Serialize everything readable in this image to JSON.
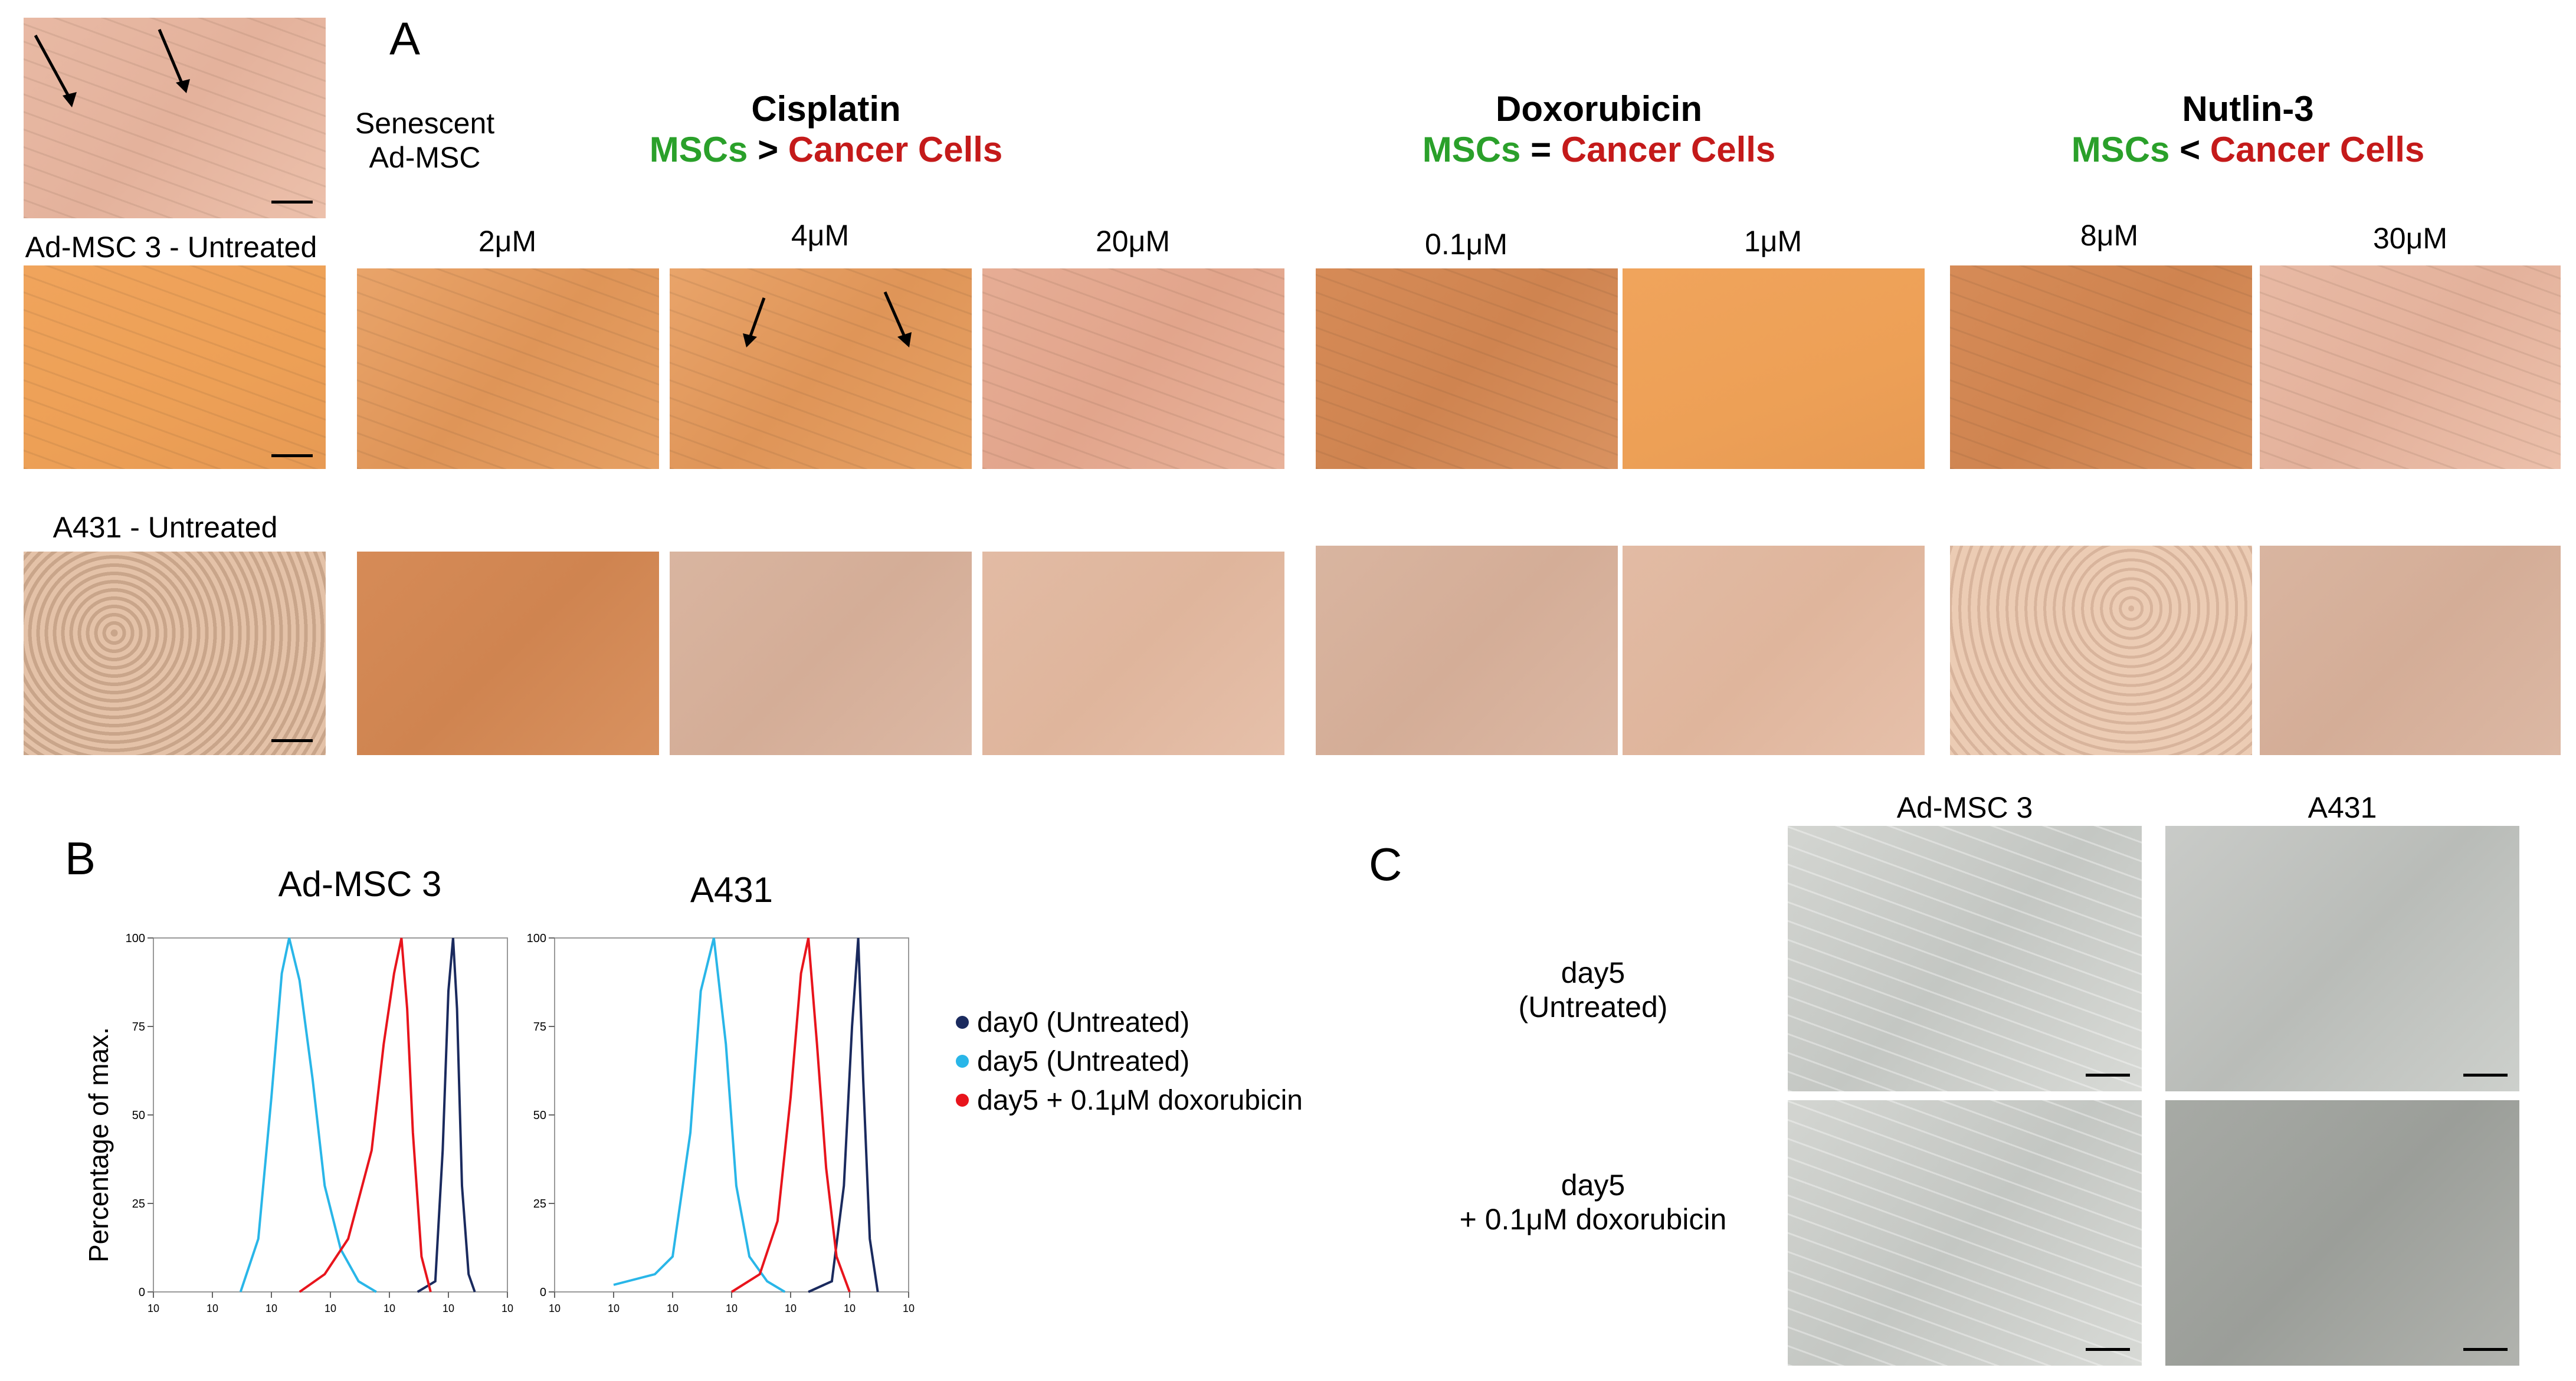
{
  "panel_a": {
    "letter": "A",
    "senescent_label_line1": "Senescent",
    "senescent_label_line2": "Ad-MSC",
    "row1_label": "Ad-MSC 3 - Untreated",
    "row2_label": "A431 - Untreated",
    "drugs": [
      {
        "name": "Cisplatin",
        "cmp_left": "MSCs",
        "cmp_op": ">",
        "cmp_right": "Cancer Cells",
        "doses": [
          "2μM",
          "4μM",
          "20μM"
        ]
      },
      {
        "name": "Doxorubicin",
        "cmp_left": "MSCs",
        "cmp_op": "=",
        "cmp_right": "Cancer Cells",
        "doses": [
          "0.1μM",
          "1μM"
        ]
      },
      {
        "name": "Nutlin-3",
        "cmp_left": "MSCs",
        "cmp_op": "<",
        "cmp_right": "Cancer Cells",
        "doses": [
          "8μM",
          "30μM"
        ]
      }
    ]
  },
  "panel_b": {
    "letter": "B",
    "ylabel": "Percentage of max.",
    "plots": [
      "Ad-MSC 3",
      "A431"
    ],
    "legend": [
      {
        "label": "day0 (Untreated)",
        "color": "#1a2a5e"
      },
      {
        "label": "day5 (Untreated)",
        "color": "#29b6e8"
      },
      {
        "label": "day5 + 0.1μM doxorubicin",
        "color": "#e8141c"
      }
    ],
    "yticks": [
      "100",
      "75",
      "50",
      "25",
      "0"
    ],
    "xticks": [
      "10",
      "10",
      "10",
      "10",
      "10",
      "10",
      "10"
    ]
  },
  "panel_c": {
    "letter": "C",
    "columns": [
      "Ad-MSC 3",
      "A431"
    ],
    "row1_line1": "day5",
    "row1_line2": "(Untreated)",
    "row2_line1": "day5",
    "row2_line2": "+ 0.1μM doxorubicin"
  },
  "chart_data": [
    {
      "type": "line",
      "title": "Ad-MSC 3",
      "xlabel": "",
      "ylabel": "Percentage of max.",
      "xscale": "log",
      "xlim": [
        1,
        1000000
      ],
      "ylim": [
        0,
        100
      ],
      "series": [
        {
          "name": "day0 (Untreated)",
          "color": "#1a2a5e",
          "x": [
            30000,
            60000,
            80000,
            100000,
            120000,
            140000,
            170000,
            220000,
            280000
          ],
          "y": [
            0,
            3,
            40,
            85,
            100,
            80,
            30,
            5,
            0
          ]
        },
        {
          "name": "day5 (Untreated)",
          "color": "#29b6e8",
          "x": [
            30,
            60,
            100,
            150,
            200,
            300,
            500,
            800,
            1500,
            3000,
            6000
          ],
          "y": [
            0,
            15,
            55,
            90,
            100,
            88,
            60,
            30,
            12,
            3,
            0
          ]
        },
        {
          "name": "day5 + 0.1μM doxorubicin",
          "color": "#e8141c",
          "x": [
            300,
            800,
            2000,
            5000,
            8000,
            12000,
            16000,
            20000,
            25000,
            35000,
            50000
          ],
          "y": [
            0,
            5,
            15,
            40,
            70,
            90,
            100,
            80,
            45,
            10,
            0
          ]
        }
      ]
    },
    {
      "type": "line",
      "title": "A431",
      "xlabel": "",
      "ylabel": "",
      "xscale": "log",
      "xlim": [
        1,
        1000000
      ],
      "ylim": [
        0,
        100
      ],
      "series": [
        {
          "name": "day0 (Untreated)",
          "color": "#1a2a5e",
          "x": [
            20000,
            50000,
            80000,
            110000,
            140000,
            170000,
            220000,
            300000
          ],
          "y": [
            0,
            3,
            30,
            75,
            100,
            60,
            15,
            0
          ]
        },
        {
          "name": "day5 (Untreated)",
          "color": "#29b6e8",
          "x": [
            10,
            50,
            100,
            200,
            300,
            500,
            800,
            1200,
            2000,
            4000,
            8000
          ],
          "y": [
            2,
            5,
            10,
            45,
            85,
            100,
            70,
            30,
            10,
            3,
            0
          ]
        },
        {
          "name": "day5 + 0.1μM doxorubicin",
          "color": "#e8141c",
          "x": [
            1000,
            3000,
            6000,
            10000,
            15000,
            20000,
            28000,
            40000,
            60000,
            100000
          ],
          "y": [
            0,
            5,
            20,
            55,
            90,
            100,
            70,
            35,
            10,
            0
          ]
        }
      ]
    }
  ]
}
